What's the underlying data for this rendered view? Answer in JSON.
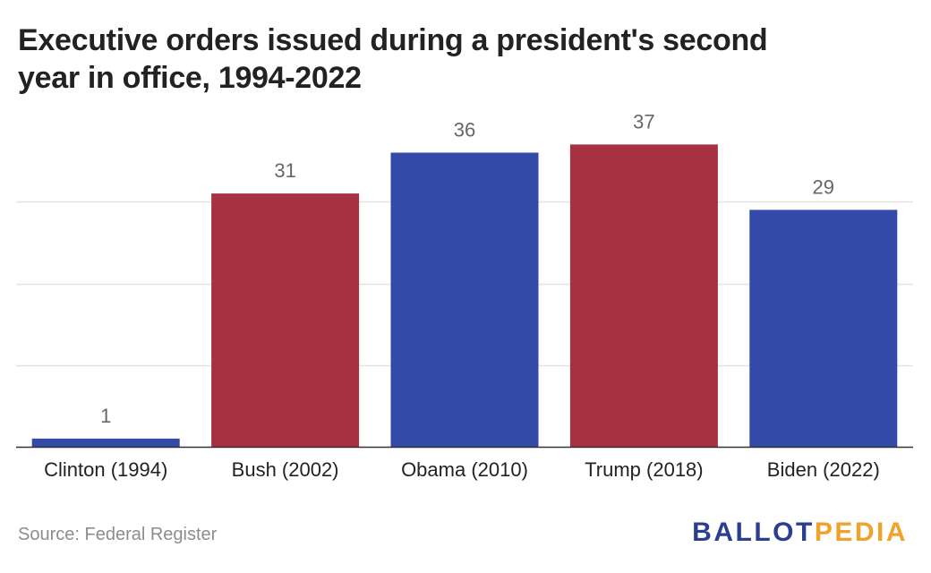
{
  "colors": {
    "democrat": "#334aa8",
    "republican": "#a83141",
    "gridline": "#e3e3e3",
    "axis": "#333333",
    "label_text": "#666666",
    "category_text": "#222222",
    "logo_primary": "#2c3e8f",
    "logo_accent": "#f0a22b"
  },
  "chart_data": {
    "type": "bar",
    "title": "Executive orders issued during a president's second year in office, 1994-2022",
    "xlabel": "",
    "ylabel": "",
    "ylim": [
      0,
      40
    ],
    "gridlines": [
      10,
      20,
      30
    ],
    "grid": true,
    "legend": "none",
    "categories": [
      "Clinton (1994)",
      "Bush (2002)",
      "Obama (2010)",
      "Trump (2018)",
      "Biden (2022)"
    ],
    "values": [
      1,
      31,
      36,
      37,
      29
    ],
    "bar_colors": [
      "democrat",
      "republican",
      "democrat",
      "republican",
      "democrat"
    ]
  },
  "footer": {
    "source": "Source: Federal Register",
    "logo_part1": "BALLOT",
    "logo_part2": "PEDIA"
  }
}
